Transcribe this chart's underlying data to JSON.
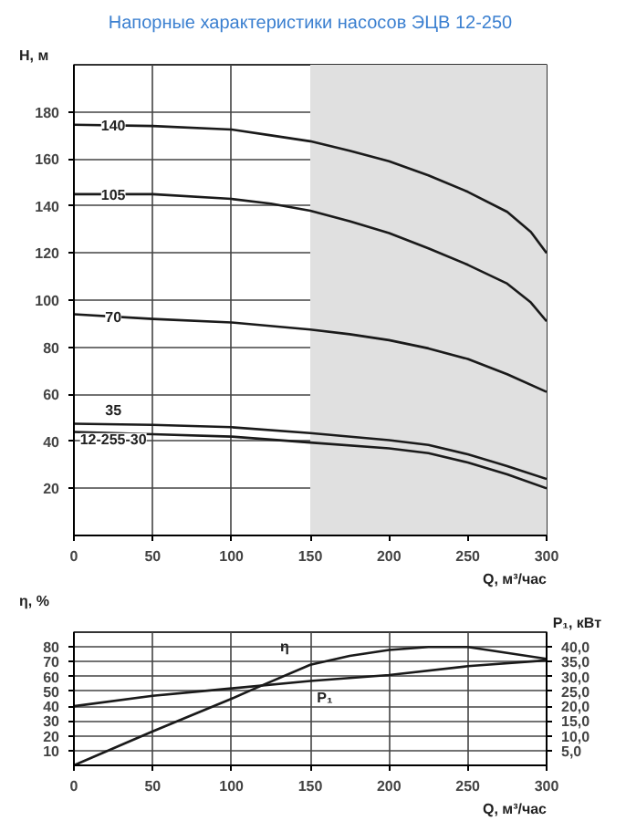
{
  "chart_data": [
    {
      "type": "line",
      "title": "Напорные характеристики насосов ЭЦВ 12-250",
      "xlabel": "Q, м³/час",
      "ylabel": "H, м",
      "xlim": [
        0,
        300
      ],
      "xticks": [
        0,
        50,
        100,
        150,
        200,
        250,
        300
      ],
      "ylim": [
        0,
        200
      ],
      "yticks": [
        20,
        40,
        60,
        80,
        100,
        120,
        140,
        160,
        180
      ],
      "grid": true,
      "bands": [
        {
          "axis": "x",
          "from": 150,
          "to": 300,
          "color": "#e0e0e0"
        }
      ],
      "series": [
        {
          "name": "140",
          "color": "#1a1a1a",
          "x": [
            0,
            50,
            100,
            125,
            150,
            175,
            200,
            225,
            250,
            275,
            290,
            300
          ],
          "values": [
            174.5,
            174,
            172.5,
            170,
            167.5,
            163.5,
            159,
            153,
            146,
            137.5,
            129,
            120
          ]
        },
        {
          "name": "105",
          "color": "#1a1a1a",
          "x": [
            0,
            50,
            100,
            125,
            150,
            175,
            200,
            225,
            250,
            275,
            290,
            300
          ],
          "values": [
            145,
            145,
            143,
            141,
            138,
            133.5,
            128.5,
            122,
            115,
            107,
            99,
            91
          ]
        },
        {
          "name": "70",
          "color": "#1a1a1a",
          "x": [
            0,
            50,
            100,
            150,
            175,
            200,
            225,
            250,
            275,
            300
          ],
          "values": [
            94,
            92,
            90.5,
            87.5,
            85.5,
            83,
            79.5,
            75,
            68.5,
            61
          ]
        },
        {
          "name": "35",
          "color": "#1a1a1a",
          "x": [
            0,
            50,
            100,
            150,
            200,
            225,
            250,
            275,
            300
          ],
          "values": [
            47.5,
            47,
            46,
            43.5,
            40.5,
            38.5,
            34.5,
            29.5,
            24
          ]
        },
        {
          "name": "12-255-30",
          "color": "#1a1a1a",
          "x": [
            0,
            50,
            100,
            150,
            200,
            225,
            250,
            275,
            300
          ],
          "values": [
            44,
            43,
            42,
            39.5,
            37,
            35,
            31,
            26,
            20
          ]
        }
      ]
    },
    {
      "type": "line",
      "xlabel": "Q, м³/час",
      "ylabel": "η, %",
      "y2label": "P₁, кВт",
      "xlim": [
        0,
        300
      ],
      "xticks": [
        0,
        50,
        100,
        150,
        200,
        250,
        300
      ],
      "ylim": [
        0,
        90
      ],
      "yticks": [
        10,
        20,
        30,
        40,
        50,
        60,
        70,
        80
      ],
      "y2lim": [
        0,
        45
      ],
      "y2ticks": [
        {
          "value": 5,
          "label": "5,0"
        },
        {
          "value": 10,
          "label": "10,0"
        },
        {
          "value": 15,
          "label": "15,0"
        },
        {
          "value": 20,
          "label": "20,0"
        },
        {
          "value": 25,
          "label": "25,0"
        },
        {
          "value": 30,
          "label": "30,0"
        },
        {
          "value": 35,
          "label": "35,0"
        },
        {
          "value": 40,
          "label": "40,0"
        }
      ],
      "grid": true,
      "series": [
        {
          "name": "η",
          "color": "#1a1a1a",
          "x": [
            0,
            50,
            100,
            115,
            150,
            175,
            200,
            225,
            250,
            275,
            300
          ],
          "values": [
            0,
            23,
            45,
            52,
            68,
            74,
            78,
            80,
            80,
            76,
            72
          ]
        },
        {
          "name": "P₁",
          "color": "#1a1a1a",
          "axis": "y2",
          "x": [
            0,
            50,
            100,
            150,
            200,
            250,
            300
          ],
          "values": [
            20,
            23.5,
            26,
            28.5,
            30.5,
            33.5,
            35.5
          ]
        }
      ]
    }
  ]
}
